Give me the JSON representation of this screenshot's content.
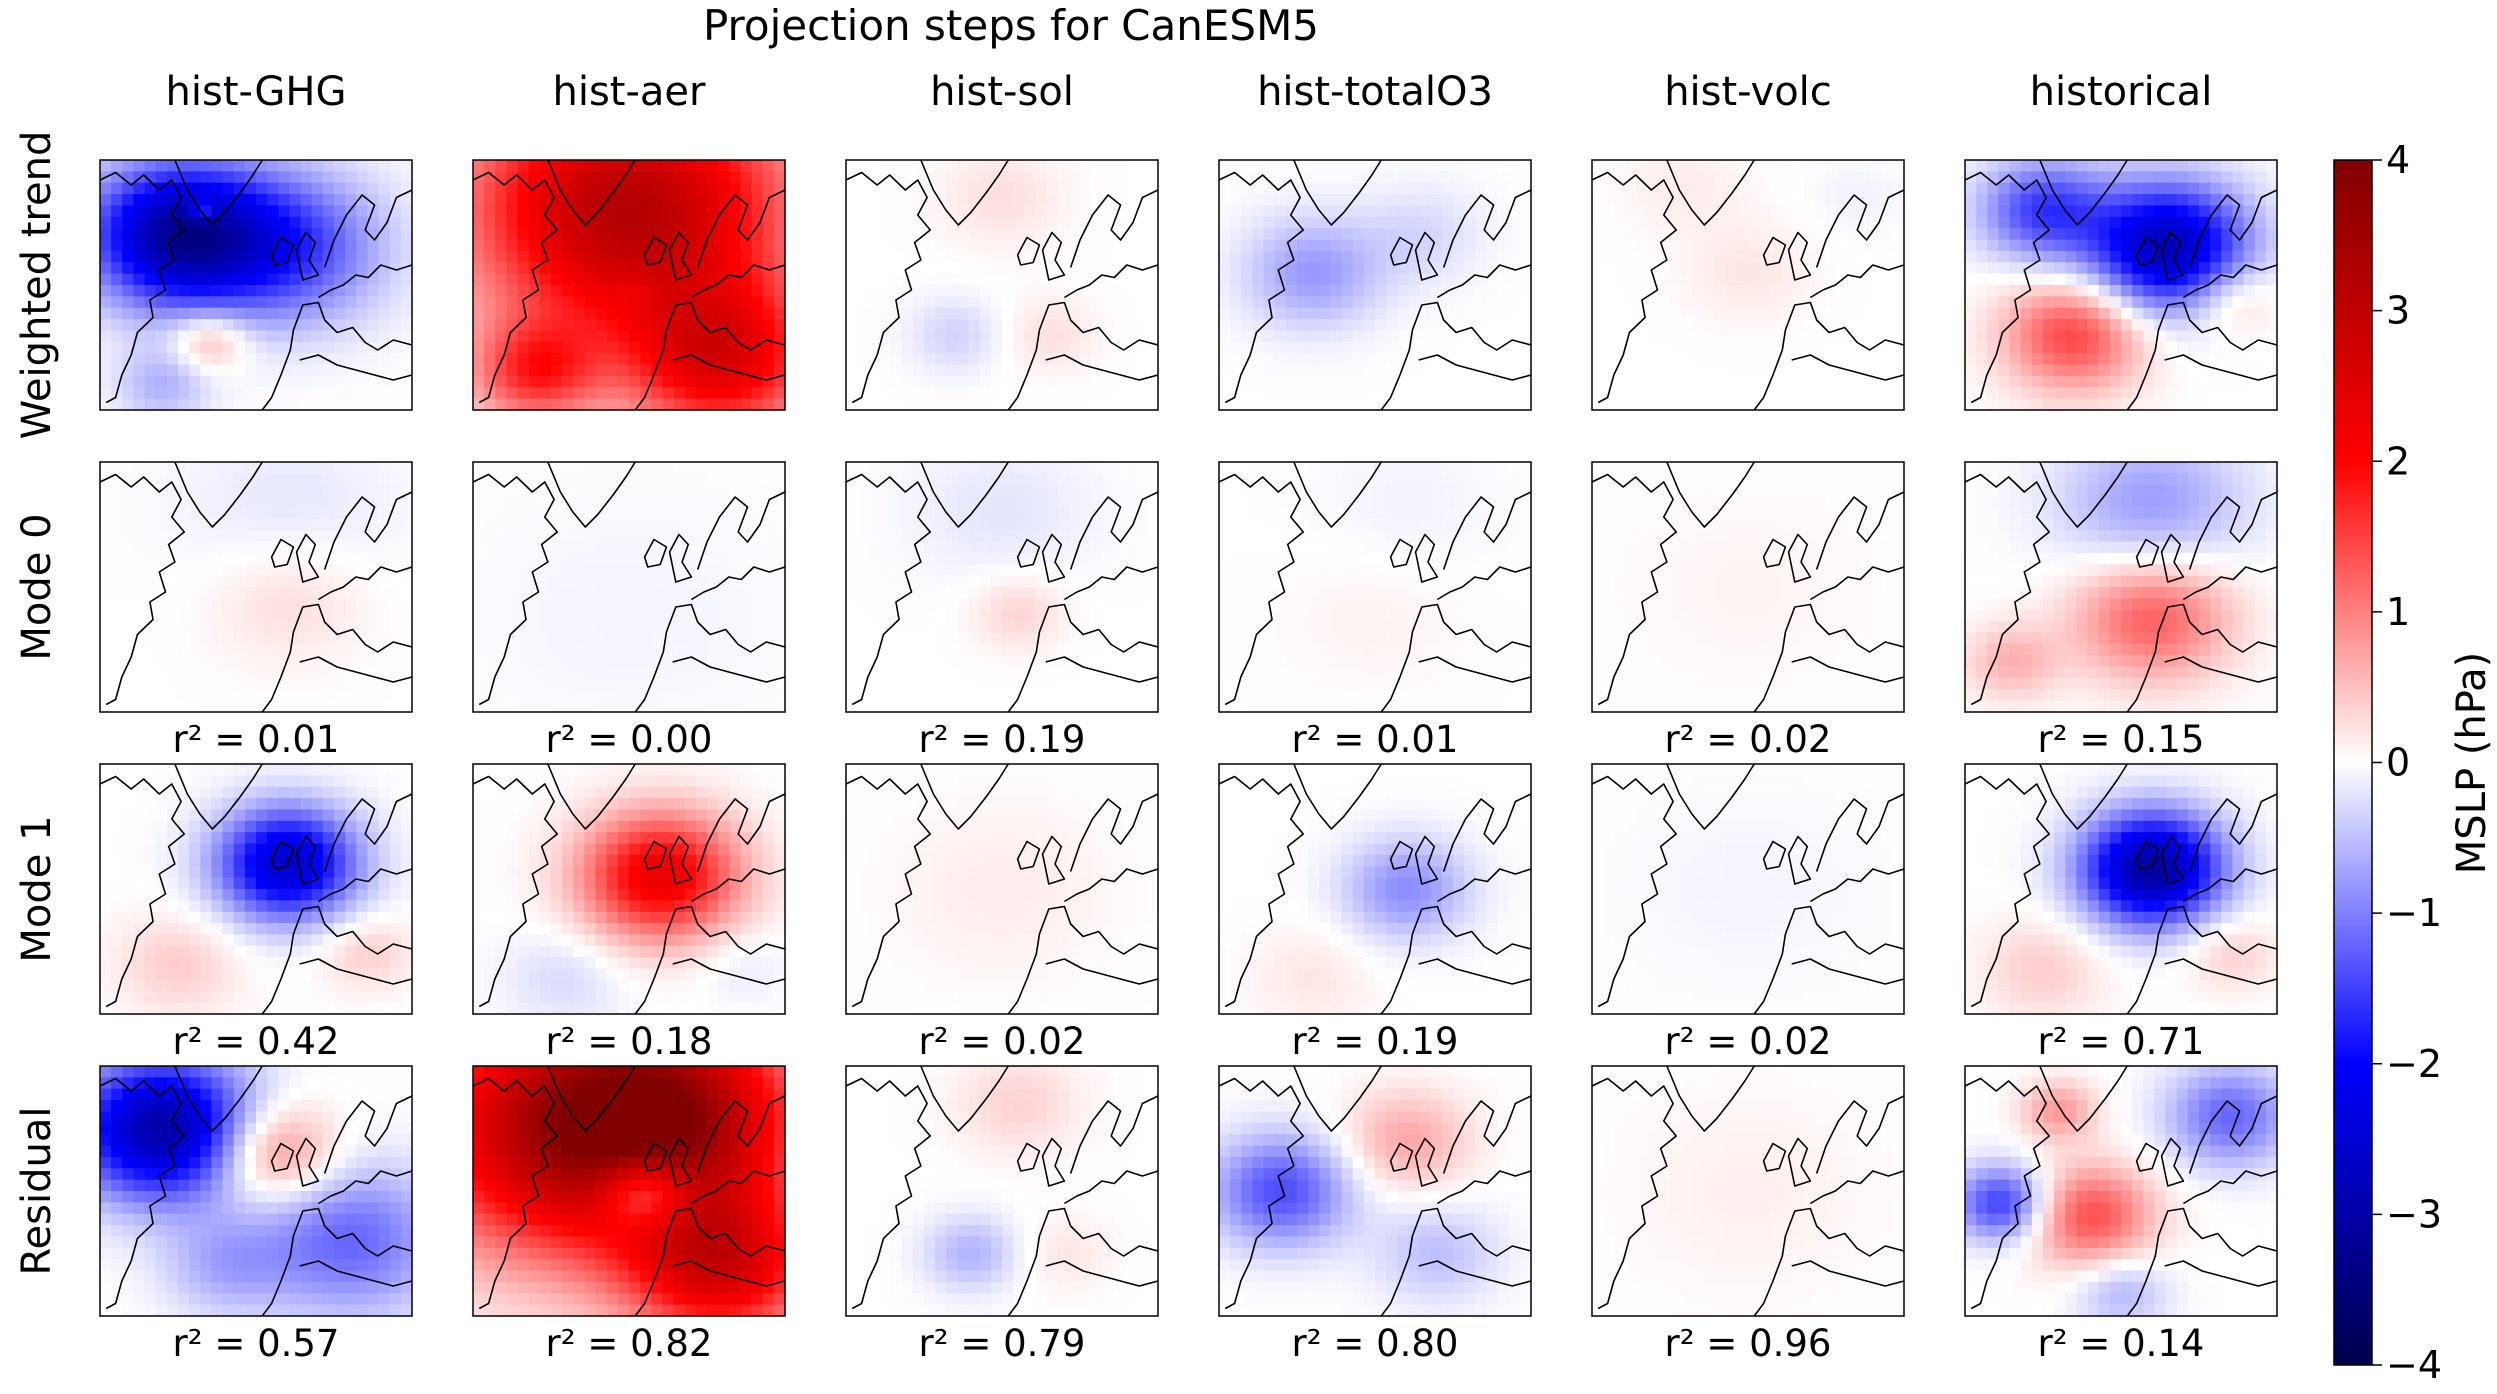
{
  "chart_data": {
    "type": "heatmap",
    "title": "Projection steps for CanESM5",
    "columns": [
      "hist-GHG",
      "hist-aer",
      "hist-sol",
      "hist-totalO3",
      "hist-volc",
      "historical"
    ],
    "rows": [
      "Weighted trend",
      "Mode 0",
      "Mode 1",
      "Residual"
    ],
    "r2_labels": [
      [
        "r² = 0.01",
        "r² = 0.00",
        "r² = 0.19",
        "r² = 0.01",
        "r² = 0.02",
        "r² = 0.15"
      ],
      [
        "r² = 0.42",
        "r² = 0.18",
        "r² = 0.02",
        "r² = 0.19",
        "r² = 0.02",
        "r² = 0.71"
      ],
      [
        "r² = 0.57",
        "r² = 0.82",
        "r² = 0.79",
        "r² = 0.80",
        "r² = 0.96",
        "r² = 0.14"
      ]
    ],
    "colorbar": {
      "label": "MSLP (hPa)",
      "vmin": -4,
      "vmax": 4,
      "ticks": [
        "4",
        "3",
        "2",
        "1",
        "0",
        "−1",
        "−2",
        "−3",
        "−4"
      ],
      "colormap": "seismic",
      "colors": [
        "#00004c",
        "#0000ff",
        "#ffffff",
        "#ff0000",
        "#800000"
      ]
    },
    "field_blobs": [
      [
        [
          [
            -3,
            0.25,
            0.3,
            0.28
          ],
          [
            -1.5,
            0.6,
            0.35,
            0.3
          ],
          [
            0.8,
            0.35,
            0.72,
            0.12
          ],
          [
            1.2,
            0.33,
            0.2,
            0.04
          ],
          [
            -0.6,
            0.2,
            0.9,
            0.15
          ]
        ],
        [
          [
            3.2,
            0.5,
            0.2,
            0.5
          ],
          [
            2.2,
            0.8,
            0.8,
            0.3
          ],
          [
            -0.3,
            0.52,
            0.52,
            0.06
          ],
          [
            1.5,
            0.2,
            0.85,
            0.2
          ]
        ],
        [
          [
            0.25,
            0.5,
            0.15,
            0.2
          ],
          [
            -0.35,
            0.35,
            0.7,
            0.15
          ],
          [
            0.25,
            0.65,
            0.7,
            0.15
          ]
        ],
        [
          [
            -0.8,
            0.3,
            0.45,
            0.22
          ],
          [
            -0.3,
            0.65,
            0.3,
            0.2
          ]
        ],
        [
          [
            0.15,
            0.3,
            0.1,
            0.2
          ],
          [
            0.2,
            0.5,
            0.45,
            0.2
          ],
          [
            -0.1,
            0.85,
            0.15,
            0.15
          ]
        ],
        [
          [
            -2.8,
            0.65,
            0.35,
            0.25
          ],
          [
            -1.5,
            0.25,
            0.2,
            0.2
          ],
          [
            1.5,
            0.35,
            0.7,
            0.22
          ],
          [
            0.6,
            0.85,
            0.55,
            0.15
          ]
        ]
      ],
      [
        [
          [
            -0.2,
            0.6,
            0.2,
            0.35
          ],
          [
            0.3,
            0.6,
            0.55,
            0.25
          ]
        ],
        [
          [
            -0.08,
            0.5,
            0.6,
            0.5
          ]
        ],
        [
          [
            -0.2,
            0.5,
            0.2,
            0.3
          ],
          [
            0.35,
            0.55,
            0.6,
            0.15
          ]
        ],
        [
          [
            -0.1,
            0.6,
            0.2,
            0.3
          ],
          [
            0.1,
            0.5,
            0.6,
            0.3
          ]
        ],
        [
          [
            0.08,
            0.5,
            0.5,
            0.4
          ]
        ],
        [
          [
            -0.8,
            0.6,
            0.18,
            0.3
          ],
          [
            1.3,
            0.6,
            0.62,
            0.25
          ],
          [
            0.6,
            0.15,
            0.8,
            0.15
          ]
        ]
      ],
      [
        [
          [
            -2.6,
            0.6,
            0.4,
            0.22
          ],
          [
            0.4,
            0.25,
            0.8,
            0.2
          ],
          [
            0.4,
            0.85,
            0.75,
            0.15
          ]
        ],
        [
          [
            2.3,
            0.6,
            0.45,
            0.25
          ],
          [
            -0.3,
            0.3,
            0.85,
            0.2
          ],
          [
            -0.2,
            0.85,
            0.8,
            0.15
          ]
        ],
        [
          [
            0.15,
            0.5,
            0.5,
            0.35
          ]
        ],
        [
          [
            -0.9,
            0.6,
            0.5,
            0.2
          ],
          [
            0.2,
            0.3,
            0.85,
            0.2
          ]
        ],
        [
          [
            -0.08,
            0.5,
            0.5,
            0.4
          ]
        ],
        [
          [
            -3.1,
            0.6,
            0.42,
            0.22
          ],
          [
            0.4,
            0.25,
            0.82,
            0.2
          ],
          [
            0.4,
            0.85,
            0.75,
            0.15
          ]
        ]
      ],
      [
        [
          [
            -3,
            0.2,
            0.25,
            0.28
          ],
          [
            1.2,
            0.55,
            0.35,
            0.2
          ],
          [
            -1.2,
            0.8,
            0.7,
            0.3
          ],
          [
            -0.6,
            0.4,
            0.8,
            0.2
          ]
        ],
        [
          [
            3,
            0.3,
            0.25,
            0.5
          ],
          [
            2.5,
            0.65,
            0.2,
            0.4
          ],
          [
            -1.8,
            0.55,
            0.5,
            0.15
          ],
          [
            2.4,
            0.8,
            0.8,
            0.3
          ]
        ],
        [
          [
            -0.6,
            0.4,
            0.75,
            0.15
          ],
          [
            0.35,
            0.55,
            0.15,
            0.2
          ],
          [
            0.2,
            0.7,
            0.75,
            0.15
          ]
        ],
        [
          [
            -1.4,
            0.2,
            0.5,
            0.22
          ],
          [
            0.7,
            0.6,
            0.3,
            0.2
          ],
          [
            -0.5,
            0.7,
            0.75,
            0.2
          ]
        ],
        [
          [
            0.12,
            0.5,
            0.5,
            0.4
          ]
        ],
        [
          [
            -1.6,
            0.12,
            0.55,
            0.15
          ],
          [
            1.4,
            0.4,
            0.6,
            0.2
          ],
          [
            -1.2,
            0.85,
            0.2,
            0.2
          ],
          [
            0.8,
            0.3,
            0.18,
            0.12
          ],
          [
            -0.6,
            0.5,
            0.9,
            0.15
          ]
        ]
      ]
    ]
  }
}
